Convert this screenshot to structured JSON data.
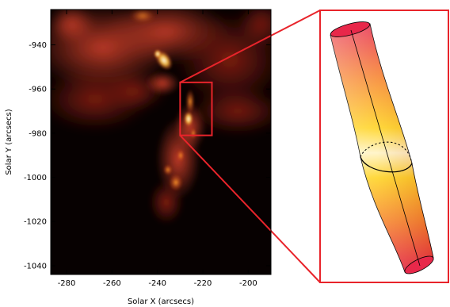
{
  "plot": {
    "x_axis": {
      "label": "Solar X (arcsecs)",
      "range": [
        -287,
        -190
      ],
      "ticks": [
        -280,
        -260,
        -240,
        -220,
        -200
      ]
    },
    "y_axis": {
      "label": "Solar Y (arcsecs)",
      "range": [
        -1044,
        -924
      ],
      "ticks": [
        -940,
        -960,
        -980,
        -1000,
        -1020,
        -1040
      ]
    },
    "highlight_box": {
      "x_range": [
        -230,
        -216
      ],
      "y_range": [
        -981,
        -957
      ]
    },
    "colormap": "red-temperature",
    "colors": {
      "highlight": "#e8242b",
      "background": "#070101",
      "emission": "#a8281a",
      "bright": "#fff6c8"
    }
  },
  "flux_tube": {
    "colors": {
      "end": "#e8284a",
      "middle": "#ffd21a",
      "highlight": "#fff9df",
      "outline": "#000000"
    }
  }
}
